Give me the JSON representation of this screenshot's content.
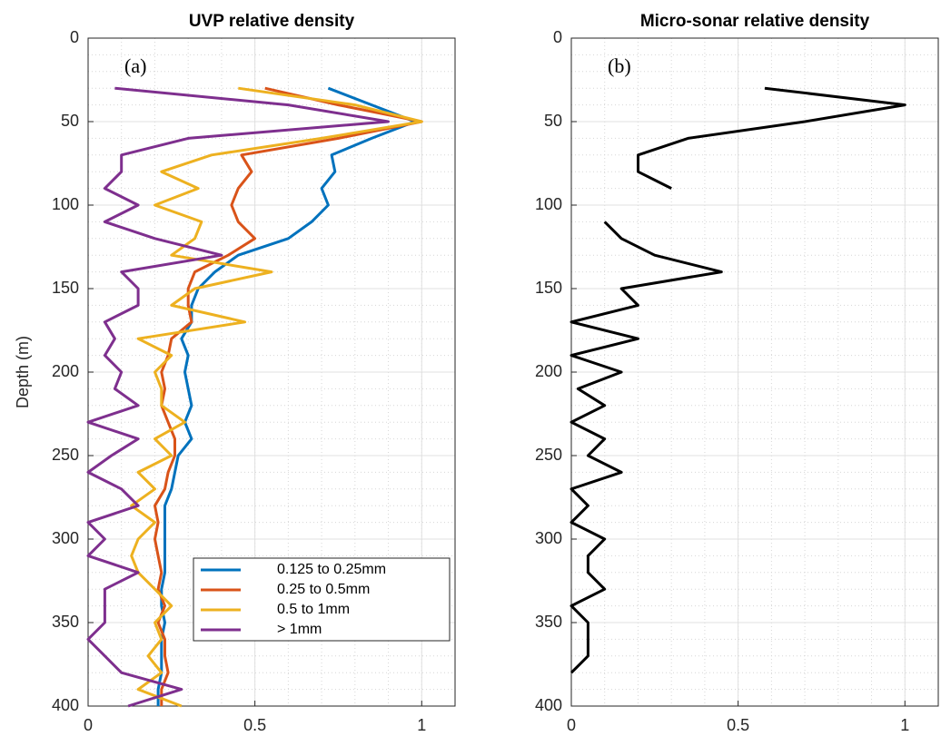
{
  "chart_data": [
    {
      "type": "line",
      "title": "UVP relative density",
      "ylabel": "Depth (m)",
      "annotation": "(a)",
      "xlim": [
        0,
        1.1
      ],
      "xticks": [
        0,
        0.5,
        1
      ],
      "ylim": [
        0,
        400
      ],
      "yticks": [
        0,
        50,
        100,
        150,
        200,
        250,
        300,
        350,
        400
      ],
      "invert_y": true,
      "grid": true,
      "minor_grid": true,
      "legend": "lower right",
      "y": [
        30,
        40,
        50,
        60,
        70,
        80,
        90,
        100,
        110,
        120,
        130,
        140,
        150,
        160,
        170,
        180,
        190,
        200,
        210,
        220,
        230,
        240,
        250,
        260,
        270,
        280,
        290,
        300,
        310,
        320,
        330,
        340,
        350,
        360,
        370,
        380,
        390,
        400
      ],
      "series": [
        {
          "name": "0.125 to 0.25mm",
          "color": "#0072bd",
          "values": [
            0.72,
            0.85,
            0.98,
            0.85,
            0.73,
            0.74,
            0.7,
            0.72,
            0.67,
            0.6,
            0.45,
            0.38,
            0.33,
            0.31,
            0.31,
            0.28,
            0.3,
            0.29,
            0.3,
            0.31,
            0.29,
            0.31,
            0.27,
            0.26,
            0.25,
            0.23,
            0.23,
            0.23,
            0.23,
            0.23,
            0.22,
            0.22,
            0.23,
            0.22,
            0.22,
            0.22,
            0.21,
            0.21
          ]
        },
        {
          "name": "0.25 to 0.5mm",
          "color": "#d95319",
          "values": [
            0.53,
            0.75,
            1.0,
            0.75,
            0.46,
            0.49,
            0.45,
            0.43,
            0.45,
            0.5,
            0.42,
            0.32,
            0.3,
            0.3,
            0.31,
            0.25,
            0.24,
            0.22,
            0.23,
            0.22,
            0.24,
            0.26,
            0.26,
            0.24,
            0.23,
            0.2,
            0.21,
            0.2,
            0.21,
            0.22,
            0.21,
            0.23,
            0.21,
            0.23,
            0.23,
            0.24,
            0.22,
            0.22
          ]
        },
        {
          "name": "0.5 to 1mm",
          "color": "#edb120",
          "values": [
            0.45,
            0.8,
            1.0,
            0.7,
            0.37,
            0.22,
            0.33,
            0.2,
            0.34,
            0.32,
            0.25,
            0.55,
            0.32,
            0.25,
            0.47,
            0.15,
            0.25,
            0.2,
            0.22,
            0.22,
            0.29,
            0.2,
            0.25,
            0.15,
            0.2,
            0.13,
            0.2,
            0.15,
            0.13,
            0.15,
            0.2,
            0.25,
            0.2,
            0.22,
            0.18,
            0.22,
            0.15,
            0.28
          ]
        },
        {
          "name": "> 1mm",
          "color": "#7e2f8e",
          "values": [
            0.08,
            0.6,
            0.9,
            0.3,
            0.1,
            0.1,
            0.05,
            0.15,
            0.05,
            0.2,
            0.4,
            0.1,
            0.15,
            0.15,
            0.05,
            0.08,
            0.05,
            0.1,
            0.08,
            0.15,
            0.0,
            0.15,
            0.07,
            0.0,
            0.1,
            0.15,
            0.0,
            0.05,
            0.0,
            0.15,
            0.05,
            0.05,
            0.05,
            0.0,
            0.05,
            0.1,
            0.28,
            0.12
          ]
        }
      ]
    },
    {
      "type": "line",
      "title": "Micro-sonar relative density",
      "annotation": "(b)",
      "xlim": [
        0,
        1.1
      ],
      "xticks": [
        0,
        0.5,
        1
      ],
      "ylim": [
        0,
        400
      ],
      "yticks": [
        0,
        50,
        100,
        150,
        200,
        250,
        300,
        350,
        400
      ],
      "invert_y": true,
      "grid": true,
      "minor_grid": true,
      "y": [
        30,
        40,
        50,
        60,
        70,
        80,
        90,
        100,
        110,
        120,
        130,
        140,
        150,
        160,
        170,
        180,
        190,
        200,
        210,
        220,
        230,
        240,
        250,
        260,
        270,
        280,
        290,
        300,
        310,
        320,
        330,
        340,
        350,
        360,
        370,
        380
      ],
      "series": [
        {
          "color": "#000000",
          "values": [
            0.58,
            1.0,
            0.7,
            0.35,
            0.2,
            0.2,
            0.3,
            null,
            0.1,
            0.15,
            0.25,
            0.45,
            0.15,
            0.2,
            0.0,
            0.2,
            0.0,
            0.15,
            0.02,
            0.1,
            0.0,
            0.1,
            0.05,
            0.15,
            0.0,
            0.05,
            0.0,
            0.1,
            0.05,
            0.05,
            0.1,
            0.0,
            0.05,
            0.05,
            0.05,
            0.0
          ]
        }
      ]
    }
  ]
}
